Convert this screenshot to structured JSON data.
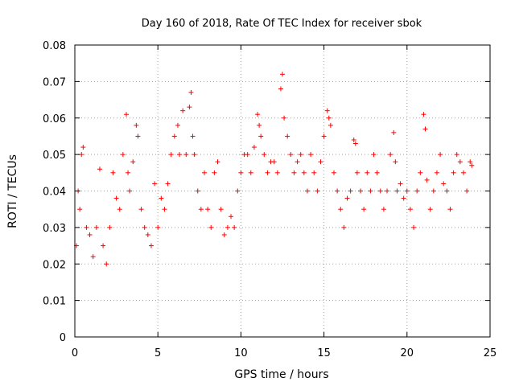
{
  "chart_data": {
    "type": "scatter",
    "title": "Day 160 of 2018, Rate Of TEC Index for receiver sbok",
    "xlabel": "GPS time / hours",
    "ylabel": "ROTI / TECUs",
    "xlim": [
      0,
      25
    ],
    "ylim": [
      0,
      0.08
    ],
    "xticks": [
      0,
      5,
      10,
      15,
      20,
      25
    ],
    "xtick_labels": [
      "0",
      "5",
      "10",
      "15",
      "20",
      "25"
    ],
    "yticks": [
      0,
      0.01,
      0.02,
      0.03,
      0.04,
      0.05,
      0.06,
      0.07,
      0.08
    ],
    "ytick_labels": [
      "0",
      "0.01",
      "0.02",
      "0.03",
      "0.04",
      "0.05",
      "0.06",
      "0.07",
      "0.08"
    ],
    "grid": true,
    "marker": "+",
    "color": "#ff0000",
    "series": [
      {
        "name": "ROTI",
        "x": [
          0.1,
          0.2,
          0.3,
          0.4,
          0.5,
          0.7,
          0.9,
          1.1,
          1.3,
          1.5,
          1.7,
          1.9,
          2.1,
          2.3,
          2.5,
          2.7,
          2.9,
          3.1,
          3.2,
          3.3,
          3.5,
          3.7,
          3.8,
          4.0,
          4.2,
          4.4,
          4.6,
          4.8,
          5.0,
          5.2,
          5.4,
          5.6,
          5.8,
          6.0,
          6.2,
          6.3,
          6.5,
          6.7,
          6.9,
          7.0,
          7.1,
          7.2,
          7.4,
          7.6,
          7.8,
          8.0,
          8.2,
          8.4,
          8.6,
          8.8,
          9.0,
          9.2,
          9.4,
          9.6,
          9.8,
          10.0,
          10.2,
          10.4,
          10.6,
          10.8,
          11.0,
          11.1,
          11.2,
          11.4,
          11.6,
          11.8,
          12.0,
          12.2,
          12.4,
          12.5,
          12.6,
          12.8,
          13.0,
          13.2,
          13.4,
          13.6,
          13.8,
          14.0,
          14.2,
          14.4,
          14.6,
          14.8,
          15.0,
          15.2,
          15.3,
          15.4,
          15.6,
          15.8,
          16.0,
          16.2,
          16.4,
          16.6,
          16.8,
          16.9,
          17.0,
          17.2,
          17.4,
          17.6,
          17.8,
          18.0,
          18.2,
          18.4,
          18.6,
          18.8,
          19.0,
          19.2,
          19.3,
          19.4,
          19.6,
          19.8,
          20.0,
          20.2,
          20.4,
          20.6,
          20.8,
          21.0,
          21.1,
          21.2,
          21.4,
          21.6,
          21.8,
          22.0,
          22.2,
          22.4,
          22.6,
          22.8,
          23.0,
          23.2,
          23.4,
          23.6,
          23.8,
          23.9
        ],
        "y": [
          0.025,
          0.04,
          0.035,
          0.05,
          0.052,
          0.03,
          0.028,
          0.022,
          0.03,
          0.046,
          0.025,
          0.02,
          0.03,
          0.045,
          0.038,
          0.035,
          0.05,
          0.061,
          0.045,
          0.04,
          0.048,
          0.058,
          0.055,
          0.035,
          0.03,
          0.028,
          0.025,
          0.042,
          0.03,
          0.038,
          0.035,
          0.042,
          0.05,
          0.055,
          0.058,
          0.05,
          0.062,
          0.05,
          0.063,
          0.067,
          0.055,
          0.05,
          0.04,
          0.035,
          0.045,
          0.035,
          0.03,
          0.045,
          0.048,
          0.035,
          0.028,
          0.03,
          0.033,
          0.03,
          0.04,
          0.045,
          0.05,
          0.05,
          0.045,
          0.052,
          0.061,
          0.058,
          0.055,
          0.05,
          0.045,
          0.048,
          0.048,
          0.045,
          0.068,
          0.072,
          0.06,
          0.055,
          0.05,
          0.045,
          0.048,
          0.05,
          0.045,
          0.04,
          0.05,
          0.045,
          0.04,
          0.048,
          0.055,
          0.062,
          0.06,
          0.058,
          0.045,
          0.04,
          0.035,
          0.03,
          0.038,
          0.04,
          0.054,
          0.053,
          0.045,
          0.04,
          0.035,
          0.045,
          0.04,
          0.05,
          0.045,
          0.04,
          0.035,
          0.04,
          0.05,
          0.056,
          0.048,
          0.04,
          0.042,
          0.038,
          0.04,
          0.035,
          0.03,
          0.04,
          0.045,
          0.061,
          0.057,
          0.043,
          0.035,
          0.04,
          0.045,
          0.05,
          0.042,
          0.04,
          0.035,
          0.045,
          0.05,
          0.048,
          0.045,
          0.04,
          0.048,
          0.047
        ]
      }
    ]
  }
}
